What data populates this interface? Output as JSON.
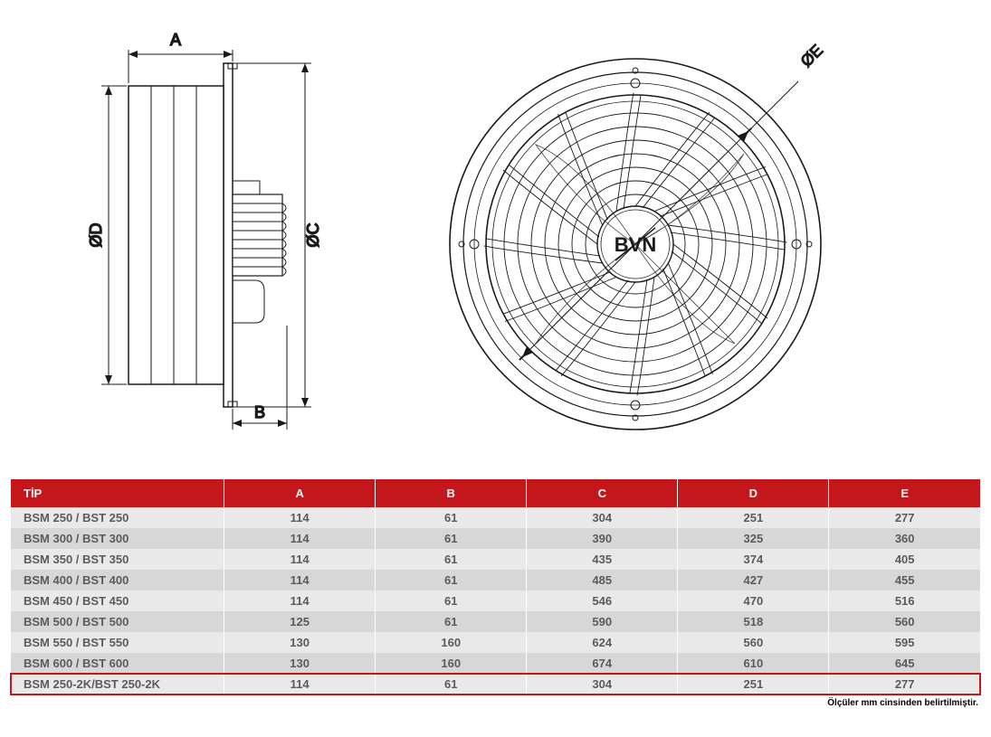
{
  "brand_text": "BVN",
  "diagram": {
    "stroke_color": "#1a1a1a",
    "stroke_width_main": 1.5,
    "stroke_width_thin": 0.8,
    "dim_labels": {
      "A": "A",
      "B": "B",
      "C": "ØC",
      "D": "ØD",
      "E": "ØE"
    },
    "label_fontsize": 18
  },
  "table": {
    "header_bg": "#c4171c",
    "header_fg": "#ffffff",
    "row_bg_a": "#e9e9e9",
    "row_bg_b": "#d7d7d7",
    "row_fg": "#5b5b5b",
    "highlight_border": "#c4171c",
    "columns": [
      "TİP",
      "A",
      "B",
      "C",
      "D",
      "E"
    ],
    "col_widths_pct": [
      22,
      15.6,
      15.6,
      15.6,
      15.6,
      15.6
    ],
    "rows": [
      [
        "BSM 250 / BST 250",
        "114",
        "61",
        "304",
        "251",
        "277"
      ],
      [
        "BSM 300 / BST 300",
        "114",
        "61",
        "390",
        "325",
        "360"
      ],
      [
        "BSM 350 / BST 350",
        "114",
        "61",
        "435",
        "374",
        "405"
      ],
      [
        "BSM 400 / BST 400",
        "114",
        "61",
        "485",
        "427",
        "455"
      ],
      [
        "BSM 450 / BST 450",
        "114",
        "61",
        "546",
        "470",
        "516"
      ],
      [
        "BSM 500 / BST 500",
        "125",
        "61",
        "590",
        "518",
        "560"
      ],
      [
        "BSM 550 / BST 550",
        "130",
        "160",
        "624",
        "560",
        "595"
      ],
      [
        "BSM 600 / BST 600",
        "130",
        "160",
        "674",
        "610",
        "645"
      ],
      [
        "BSM 250-2K/BST 250-2K",
        "114",
        "61",
        "304",
        "251",
        "277"
      ]
    ],
    "highlight_row_index": 8
  },
  "footnote": "Ölçüler mm cinsinden belirtilmiştir.",
  "footnote_fontsize": 10,
  "colors": {
    "page_bg": "#ffffff"
  }
}
